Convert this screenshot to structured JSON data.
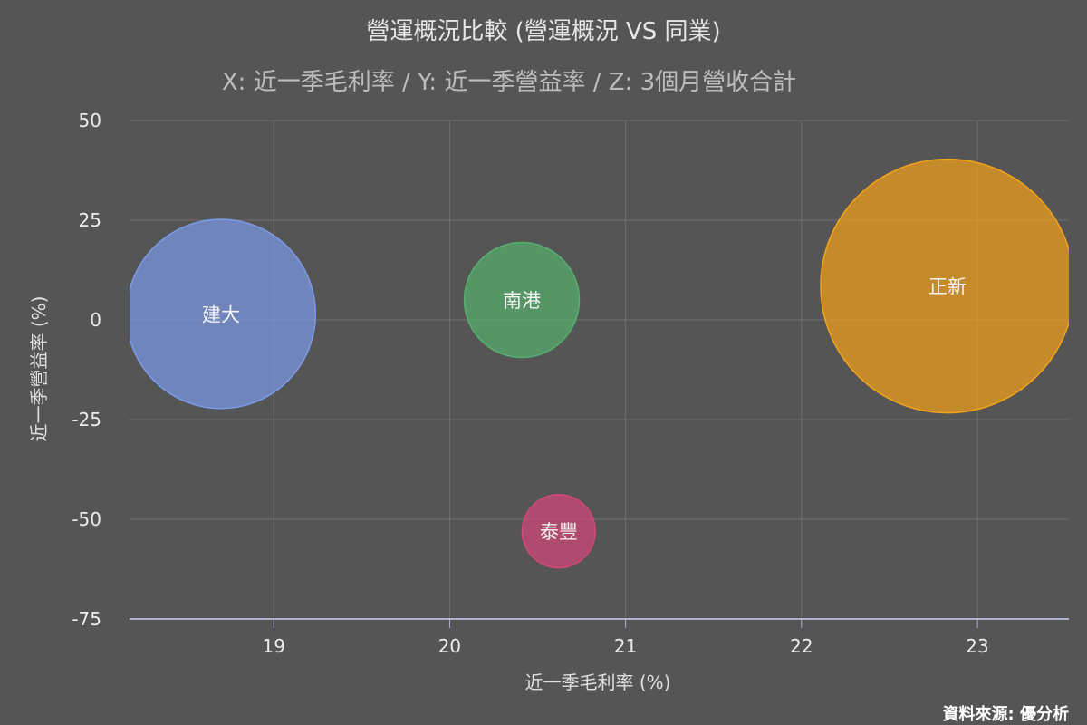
{
  "chart_data": {
    "type": "bubble",
    "title": "營運概況比較 (營運概況 VS 同業)",
    "subtitle": "X: 近一季毛利率 / Y: 近一季營益率 / Z: 3個月營收合計",
    "xlabel": "近一季毛利率 (%)",
    "ylabel": "近一季營益率 (%)",
    "xlim": [
      18.18,
      23.52
    ],
    "ylim": [
      -75,
      50
    ],
    "xticks": [
      19,
      20,
      21,
      22,
      23
    ],
    "yticks": [
      50,
      25,
      0,
      -25,
      -50,
      -75
    ],
    "grid": true,
    "legend": "none",
    "points": [
      {
        "name": "建大",
        "x": 18.7,
        "y": 1.5,
        "z": 100,
        "color": "#7b9ae8"
      },
      {
        "name": "南港",
        "x": 20.41,
        "y": 5,
        "z": 37,
        "color": "#55b06d"
      },
      {
        "name": "泰豐",
        "x": 20.62,
        "y": -53,
        "z": 15,
        "color": "#d4477a"
      },
      {
        "name": "正新",
        "x": 22.83,
        "y": 8.5,
        "z": 180,
        "color": "#f5a31a"
      }
    ]
  },
  "credit": "資料來源: 優分析"
}
